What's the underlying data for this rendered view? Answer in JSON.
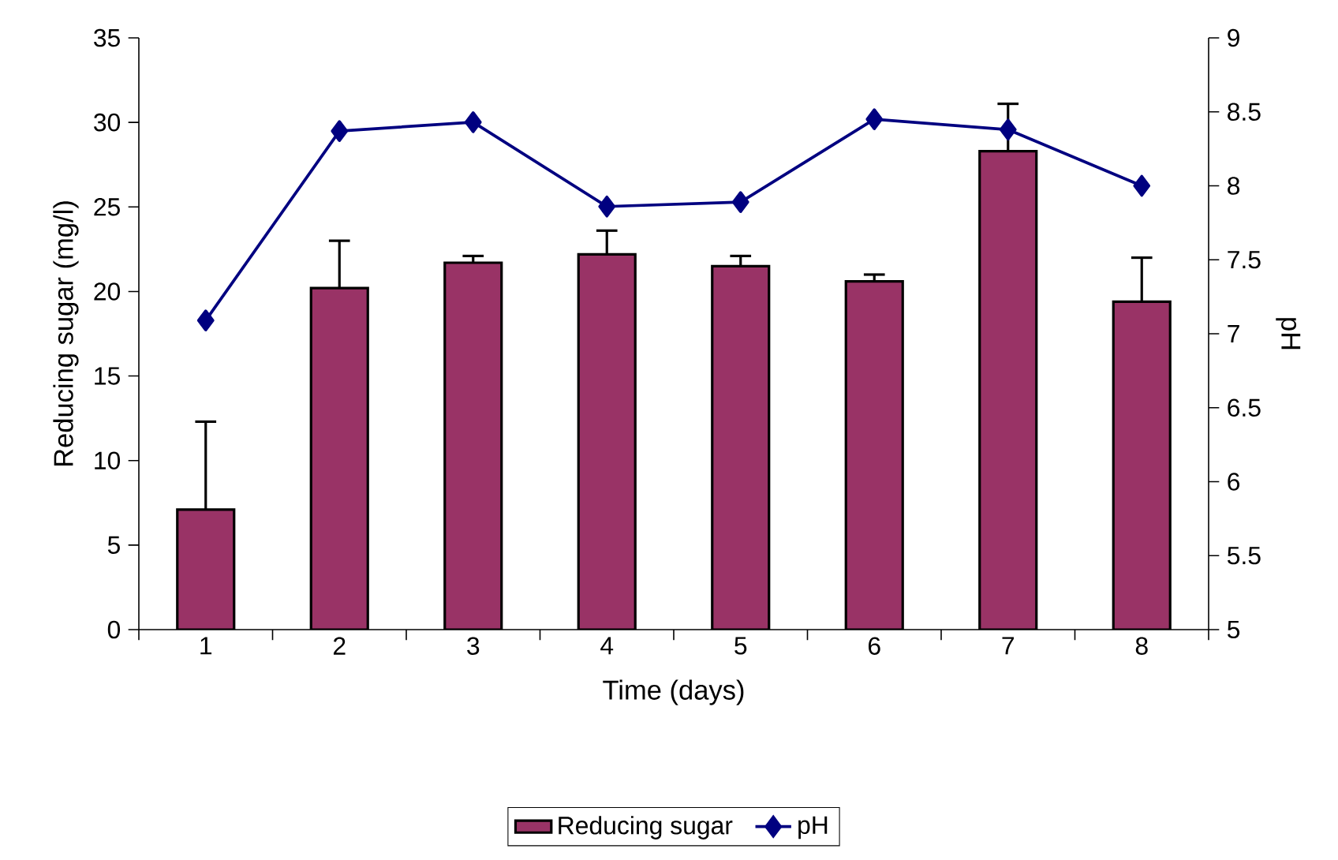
{
  "chart_data": {
    "type": "bar",
    "xlabel": "Time (days)",
    "ylabel": "Reducing sugar (mg/l)",
    "y2label": "pH",
    "categories": [
      "1",
      "2",
      "3",
      "4",
      "5",
      "6",
      "7",
      "8"
    ],
    "series": [
      {
        "name": "Reducing sugar",
        "color": "#993366",
        "values": [
          7.1,
          20.2,
          21.7,
          22.2,
          21.5,
          20.6,
          28.3,
          19.4
        ],
        "errors": [
          5.2,
          2.8,
          0.4,
          1.4,
          0.6,
          0.4,
          2.8,
          2.6
        ]
      },
      {
        "name": "pH",
        "type": "line",
        "axis": "y2",
        "color": "#000080",
        "values": [
          7.09,
          8.37,
          8.43,
          7.86,
          7.89,
          8.45,
          8.38,
          8.0
        ]
      }
    ],
    "marker": "diamond",
    "line_style": "solid",
    "ylim": [
      0,
      35
    ],
    "yticks": [
      0,
      5,
      10,
      15,
      20,
      25,
      30,
      35
    ],
    "y2lim": [
      5,
      9
    ],
    "y2ticks": [
      5,
      5.5,
      6,
      6.5,
      7,
      7.5,
      8,
      8.5,
      9
    ],
    "legend": "bottom",
    "grid": false
  }
}
